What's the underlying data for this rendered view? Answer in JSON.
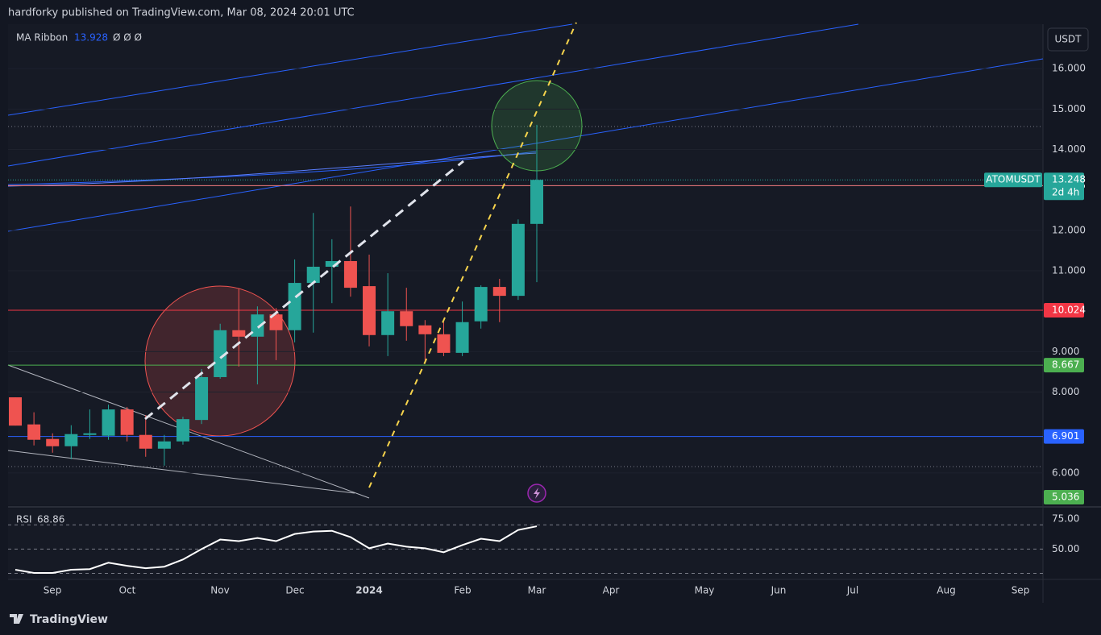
{
  "header": {
    "title": "hardforky published on TradingView.com, Mar 08, 2024 20:01 UTC"
  },
  "chart_data": [
    {
      "type": "candlestick",
      "symbol": "ATOMUSDT",
      "currency": "USDT",
      "countdown": "2d 4h",
      "indicator": {
        "name": "MA Ribbon",
        "value": 13.928,
        "placeholders": "Ø Ø Ø"
      },
      "up_color": "#26a69a",
      "down_color": "#ef5350",
      "open": [
        7.87,
        7.2,
        6.84,
        6.66,
        6.94,
        6.92,
        7.57,
        6.94,
        6.6,
        6.78,
        7.31,
        8.37,
        9.53,
        9.37,
        9.92,
        9.53,
        10.7,
        11.1,
        11.24,
        10.62,
        9.41,
        10.0,
        9.65,
        9.43,
        8.97,
        9.75,
        10.6,
        10.38,
        12.16
      ],
      "high": [
        7.87,
        7.5,
        6.98,
        7.18,
        7.57,
        7.69,
        7.63,
        7.43,
        6.94,
        7.39,
        8.57,
        9.69,
        10.56,
        10.12,
        10.08,
        11.28,
        12.43,
        11.78,
        12.59,
        11.4,
        10.94,
        10.58,
        9.78,
        9.73,
        10.24,
        10.64,
        10.8,
        12.27,
        14.61
      ],
      "low": [
        7.17,
        6.68,
        6.5,
        6.34,
        6.84,
        6.82,
        6.78,
        6.4,
        6.18,
        6.7,
        7.21,
        8.33,
        8.63,
        8.19,
        8.79,
        9.23,
        9.47,
        10.2,
        10.36,
        9.13,
        8.89,
        9.27,
        8.77,
        8.89,
        8.89,
        9.57,
        9.73,
        10.28,
        10.72
      ],
      "close": [
        7.17,
        6.82,
        6.66,
        6.96,
        6.98,
        7.57,
        6.94,
        6.6,
        6.78,
        7.33,
        8.37,
        9.53,
        9.37,
        9.92,
        9.53,
        10.7,
        11.1,
        11.24,
        10.58,
        9.41,
        10.0,
        9.63,
        9.43,
        8.97,
        9.73,
        10.6,
        10.38,
        12.16,
        13.248
      ],
      "ylim": [
        5.2,
        17.1
      ],
      "yticks": [
        {
          "value": 16,
          "label": "16.000"
        },
        {
          "value": 15,
          "label": "15.000"
        },
        {
          "value": 14,
          "label": "14.000"
        },
        {
          "value": 12,
          "label": "12.000"
        },
        {
          "value": 11,
          "label": "11.000"
        },
        {
          "value": 9,
          "label": "9.000"
        },
        {
          "value": 8,
          "label": "8.000"
        },
        {
          "value": 6,
          "label": "6.000"
        }
      ],
      "levels": [
        {
          "value": 13.105,
          "color": "#f77c80"
        },
        {
          "value": 10.024,
          "color": "#f23645"
        },
        {
          "value": 8.667,
          "color": "#4caf50"
        },
        {
          "value": 6.901,
          "color": "#2962ff"
        },
        {
          "value": 5.036,
          "color": "#4caf50"
        }
      ]
    },
    {
      "type": "line",
      "series": [
        {
          "name": "RSI",
          "color": "#ffffff",
          "values": [
            33,
            30.3,
            30.3,
            33,
            33.5,
            38.8,
            36.2,
            34.2,
            35.5,
            41.4,
            50,
            57.9,
            56.6,
            59.2,
            56.6,
            62.5,
            64.5,
            65.1,
            59.9,
            50.7,
            54.6,
            52,
            50.7,
            47.4,
            53.3,
            58.6,
            56.6,
            65.8,
            68.86
          ]
        }
      ],
      "ylim": [
        25.66,
        83.55
      ],
      "yticks": [
        {
          "value": 75,
          "label": "75.00"
        },
        {
          "value": 50,
          "label": "50.00"
        }
      ],
      "bands": [
        70,
        50,
        30
      ]
    }
  ],
  "time_axis": {
    "labels": [
      "Sep",
      "Oct",
      "Nov",
      "Dec",
      "2024",
      "Feb",
      "Mar",
      "Apr",
      "May",
      "Jun",
      "Jul",
      "Aug",
      "Sep"
    ]
  },
  "footer": {
    "brand": "TradingView"
  }
}
